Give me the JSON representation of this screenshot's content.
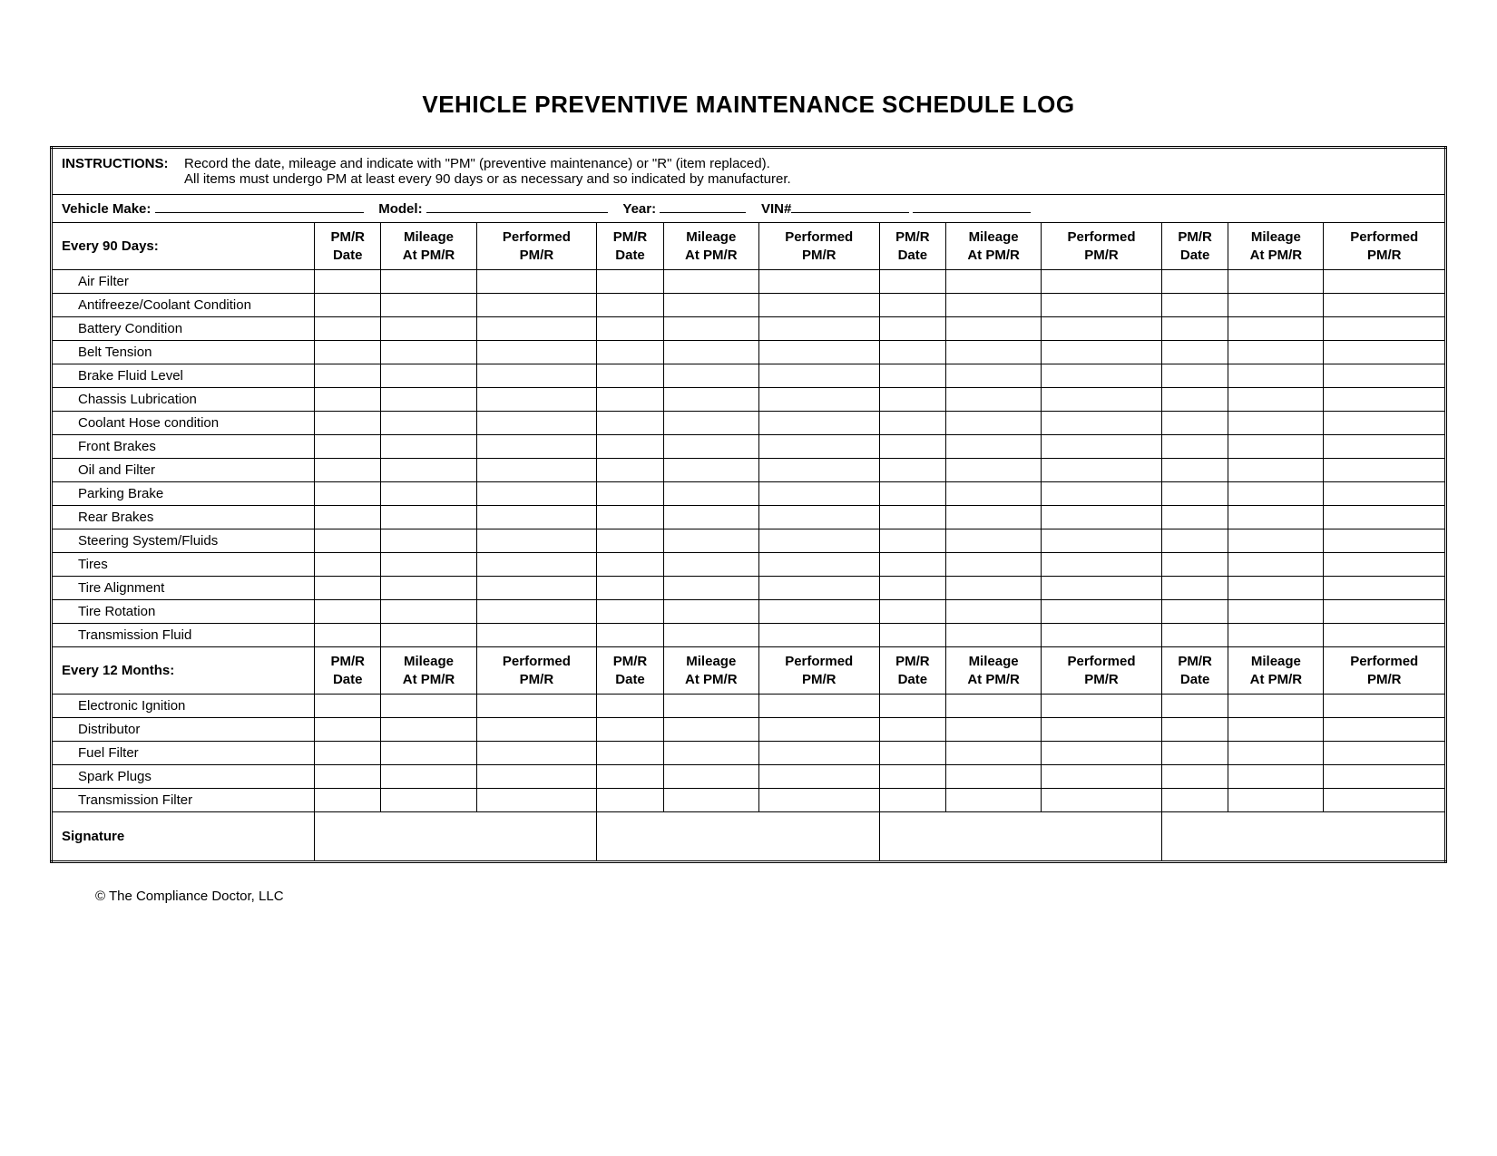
{
  "title": "VEHICLE PREVENTIVE MAINTENANCE SCHEDULE LOG",
  "instructions": {
    "label": "INSTRUCTIONS:",
    "line1": "Record the date, mileage and indicate with \"PM\" (preventive maintenance) or \"R\" (item replaced).",
    "line2": "All items must undergo PM at least every 90 days or as necessary and so indicated by manufacturer."
  },
  "vehicle_info": {
    "make_label": "Vehicle Make:",
    "model_label": "Model:",
    "year_label": "Year:",
    "vin_label": "VIN#"
  },
  "column_set": {
    "c1": "PM/R\nDate",
    "c2": "Mileage\nAt PM/R",
    "c3": "Performed\nPM/R"
  },
  "section_90": {
    "header": "Every 90 Days:",
    "items": [
      "Air Filter",
      "Antifreeze/Coolant Condition",
      "Battery Condition",
      "Belt Tension",
      "Brake Fluid Level",
      "Chassis Lubrication",
      "Coolant Hose condition",
      "Front Brakes",
      "Oil and Filter",
      "Parking Brake",
      "Rear Brakes",
      "Steering System/Fluids",
      "Tires",
      "Tire Alignment",
      "Tire Rotation",
      "Transmission Fluid"
    ]
  },
  "section_12": {
    "header": "Every 12 Months:",
    "items": [
      "Electronic Ignition",
      "Distributor",
      "Fuel Filter",
      "Spark Plugs",
      "Transmission Filter"
    ]
  },
  "signature_label": "Signature",
  "footer": "© The Compliance Doctor, LLC",
  "layout": {
    "first_col_width": 290,
    "set_widths": {
      "c1": 60,
      "c2": 78,
      "c3": 100
    },
    "sig_merge_per_set": 3
  }
}
